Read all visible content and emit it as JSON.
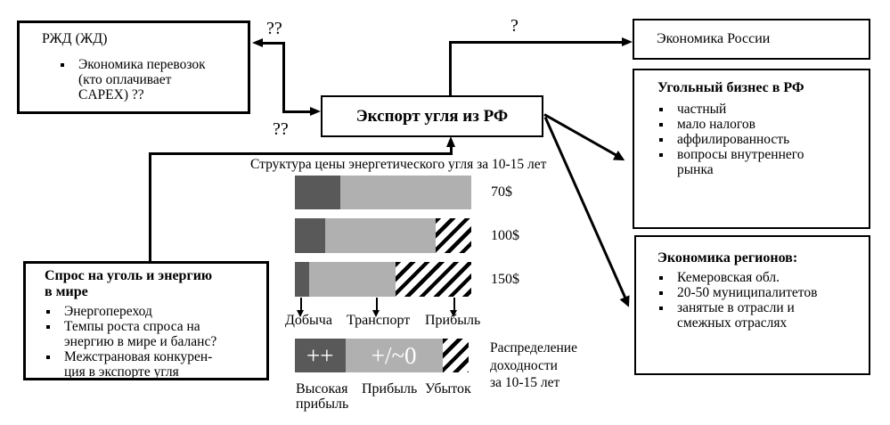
{
  "labels": {
    "q_top": "??",
    "q_mid": "??",
    "q_russia": "?"
  },
  "boxes": {
    "rzd": {
      "title": "РЖД (ЖД)",
      "bullets": [
        "Экономика перевозок\n(кто оплачивает\nCAPEX) ??"
      ]
    },
    "export": {
      "title": "Экспорт угля из РФ"
    },
    "russia": {
      "title": "Экономика России"
    },
    "coal": {
      "title": "Угольный бизнес в РФ",
      "bullets": [
        "частный",
        "мало налогов",
        "аффилированность",
        "вопросы внутреннего\nрынка"
      ]
    },
    "regions": {
      "title": "Экономика регионов:",
      "bullets": [
        "Кемеровская обл.",
        "20-50 муниципалитетов",
        "занятые в отрасли и\nсмежных отраслях"
      ]
    },
    "demand": {
      "title": "Спрос на уголь и энергию\nв мире",
      "bullets": [
        "Энергопереход",
        "Темпы роста спроса на\nэнергию в мире и баланс?",
        "Межстрановая конкурен-\nция в экспорте угля"
      ]
    }
  },
  "chart_data": {
    "type": "bar",
    "orientation": "horizontal-stacked",
    "title": "Структура цены энергетического угля за 10-15 лет",
    "categories": [
      "70$",
      "100$",
      "150$"
    ],
    "series": [
      {
        "name": "Добыча",
        "color": "#595959",
        "values": [
          26,
          17,
          8
        ]
      },
      {
        "name": "Транспорт",
        "color": "#b0b0b0",
        "values": [
          74,
          63,
          49
        ]
      },
      {
        "name": "Прибыль",
        "pattern": "black-diagonal-hatch",
        "values": [
          0,
          20,
          43
        ]
      }
    ],
    "segment_labels": [
      "Добыча",
      "Транспорт",
      "Прибыль"
    ],
    "colors": {
      "dark": "#595959",
      "light": "#b0b0b0"
    },
    "profit_bar": {
      "caption": "Распределение\nдоходности\nза 10-15 лет",
      "segments": [
        {
          "text": "++",
          "label": "Высокая\nприбыль",
          "color": "#595959",
          "width_pct": 29
        },
        {
          "text": "+/~0",
          "label": "Прибыль",
          "color": "#b0b0b0",
          "width_pct": 56
        },
        {
          "text": "",
          "label": "Убыток",
          "pattern": "black-diagonal-hatch",
          "width_pct": 15
        }
      ]
    }
  }
}
